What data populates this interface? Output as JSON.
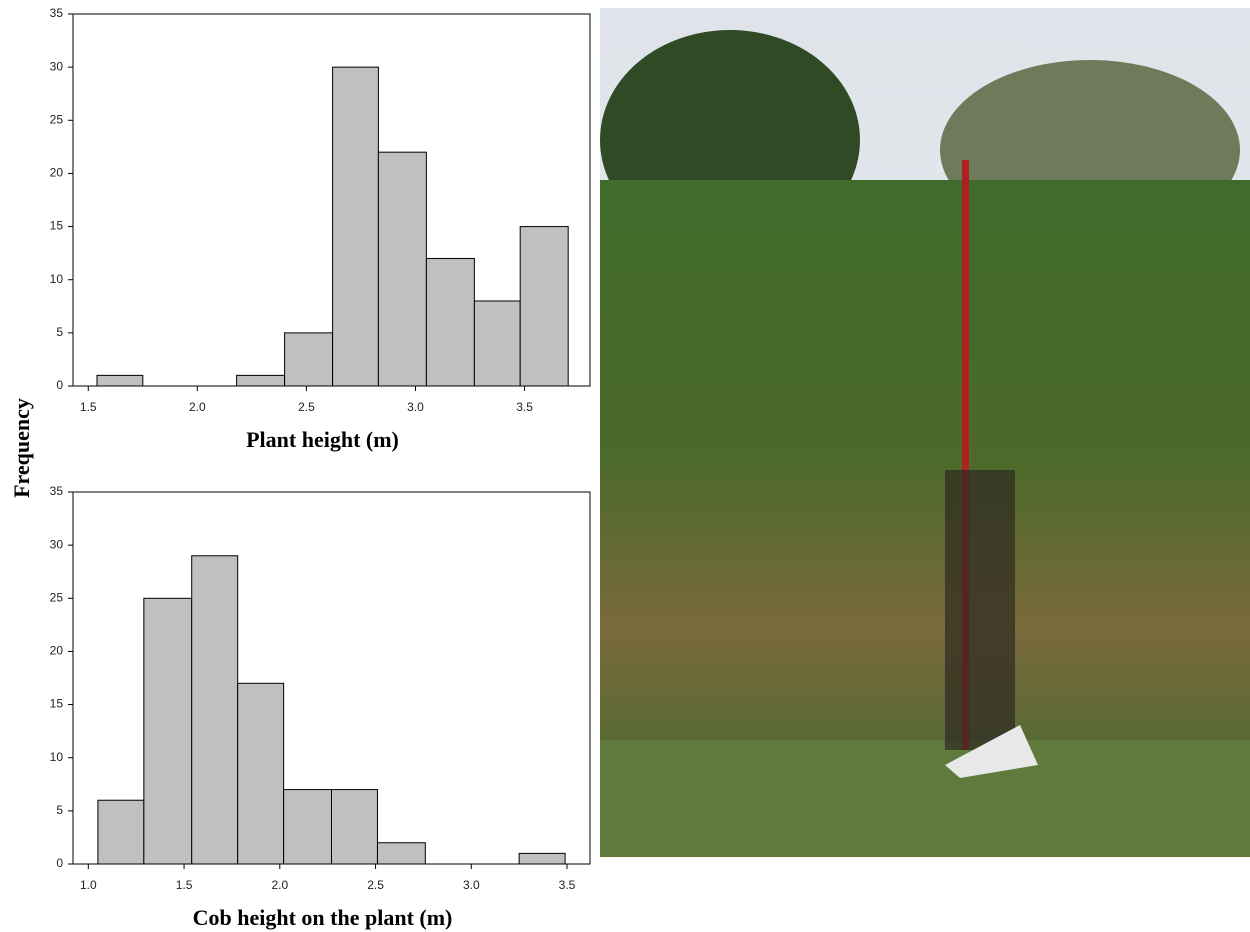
{
  "y_label": "Frequency",
  "chart_data": [
    {
      "type": "histogram",
      "xlabel": "Plant height (m)",
      "bins": [
        1.54,
        1.75,
        1.97,
        2.18,
        2.4,
        2.62,
        2.83,
        3.05,
        3.27,
        3.48,
        3.7
      ],
      "counts": [
        1,
        0,
        0,
        1,
        5,
        30,
        22,
        12,
        8,
        15
      ],
      "color": "#c0c0c0",
      "xlim": [
        1.43,
        3.8
      ],
      "xticks": [
        1.5,
        {
          "value": 2.0,
          "label": "2.0"
        },
        2.5,
        {
          "value": 3.0,
          "label": "3.0"
        },
        3.5
      ],
      "ylim": [
        0,
        35
      ],
      "yticks": [
        0,
        5,
        10,
        15,
        20,
        25,
        30,
        35
      ]
    },
    {
      "type": "histogram",
      "xlabel": "Cob height on the plant (m)",
      "bins": [
        1.05,
        1.29,
        1.54,
        1.78,
        2.02,
        2.27,
        2.51,
        2.76,
        3.0,
        3.25,
        3.49
      ],
      "counts": [
        6,
        25,
        29,
        17,
        7,
        7,
        2,
        0,
        0,
        1
      ],
      "color": "#c0c0c0",
      "xlim": [
        0.92,
        3.62
      ],
      "xticks": [
        {
          "value": 1.0,
          "label": "1.0"
        },
        1.5,
        {
          "value": 2.0,
          "label": "2.0"
        },
        2.5,
        {
          "value": 3.0,
          "label": "3.0"
        },
        3.5
      ],
      "ylim": [
        0,
        35
      ],
      "yticks": [
        0,
        5,
        10,
        15,
        20,
        25,
        30,
        35
      ]
    }
  ]
}
